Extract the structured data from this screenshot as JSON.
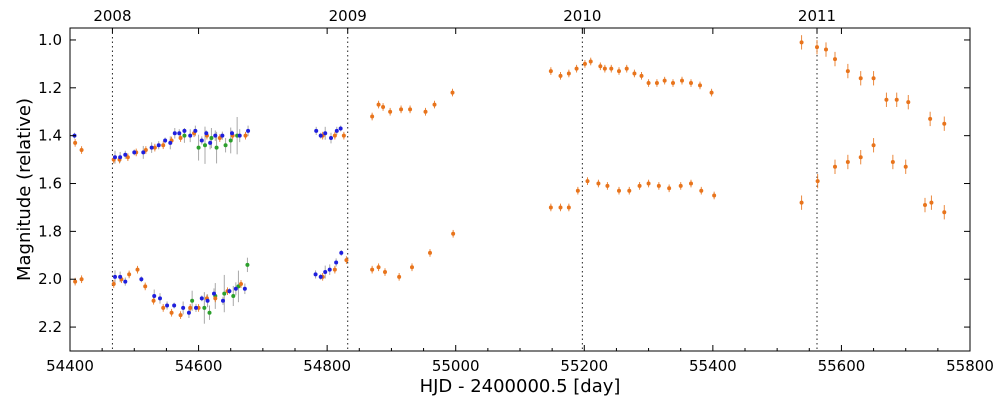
{
  "chart_data": {
    "type": "scatter",
    "title": "",
    "xlabel": "HJD - 2400000.5 [day]",
    "ylabel": "Magnitude (relative)",
    "xlim": [
      54400,
      55800
    ],
    "ylim": [
      2.3,
      0.95
    ],
    "y_axis_inverted": true,
    "grid": false,
    "x_ticks": [
      54400,
      54600,
      54800,
      55000,
      55200,
      55400,
      55600,
      55800
    ],
    "y_ticks": [
      1.0,
      1.2,
      1.4,
      1.6,
      1.8,
      2.0,
      2.2
    ],
    "x_tick_labels": [
      "54400",
      "54600",
      "54800",
      "55000",
      "55200",
      "55400",
      "55600",
      "55800"
    ],
    "y_tick_labels": [
      "1.0",
      "1.2",
      "1.4",
      "1.6",
      "1.8",
      "2.0",
      "2.2"
    ],
    "year_markers": [
      {
        "label": "2008",
        "x": 54466
      },
      {
        "label": "2009",
        "x": 54832
      },
      {
        "label": "2010",
        "x": 55197
      },
      {
        "label": "2011",
        "x": 55562
      }
    ],
    "colors": {
      "blue": "#1f1fdd",
      "green": "#2ca02c",
      "orange": "#e8741c",
      "errorbar": "#9a9a9a"
    },
    "series": [
      {
        "color": "blue",
        "points": [
          [
            54407,
            1.4
          ],
          [
            54470,
            1.49
          ],
          [
            54478,
            1.49
          ],
          [
            54486,
            1.48
          ],
          [
            54500,
            1.47
          ],
          [
            54514,
            1.47
          ],
          [
            54527,
            1.45
          ],
          [
            54538,
            1.44
          ],
          [
            54548,
            1.42
          ],
          [
            54556,
            1.43
          ],
          [
            54563,
            1.39
          ],
          [
            54570,
            1.39
          ],
          [
            54578,
            1.38
          ],
          [
            54587,
            1.4
          ],
          [
            54595,
            1.38
          ],
          [
            54605,
            1.42
          ],
          [
            54612,
            1.39
          ],
          [
            54618,
            1.43
          ],
          [
            54626,
            1.4
          ],
          [
            54637,
            1.4
          ],
          [
            54652,
            1.39
          ],
          [
            54664,
            1.4
          ],
          [
            54677,
            1.38
          ],
          [
            54783,
            1.38
          ],
          [
            54790,
            1.4
          ],
          [
            54797,
            1.39
          ],
          [
            54806,
            1.41
          ],
          [
            54815,
            1.38
          ],
          [
            54821,
            1.37
          ],
          [
            54470,
            1.99
          ],
          [
            54478,
            1.99
          ],
          [
            54486,
            2.01
          ],
          [
            54511,
            2.0
          ],
          [
            54531,
            2.07
          ],
          [
            54540,
            2.08
          ],
          [
            54551,
            2.11
          ],
          [
            54562,
            2.11
          ],
          [
            54576,
            2.12
          ],
          [
            54585,
            2.14
          ],
          [
            54596,
            2.12
          ],
          [
            54605,
            2.08
          ],
          [
            54614,
            2.09
          ],
          [
            54624,
            2.06
          ],
          [
            54638,
            2.09
          ],
          [
            54648,
            2.05
          ],
          [
            54658,
            2.04
          ],
          [
            54672,
            2.04
          ],
          [
            54782,
            1.98
          ],
          [
            54790,
            1.99
          ],
          [
            54797,
            1.97
          ],
          [
            54804,
            1.96
          ],
          [
            54814,
            1.93
          ],
          [
            54822,
            1.89
          ]
        ]
      },
      {
        "color": "green",
        "points": [
          [
            54578,
            1.4
          ],
          [
            54600,
            1.45
          ],
          [
            54610,
            1.44
          ],
          [
            54620,
            1.41
          ],
          [
            54628,
            1.45
          ],
          [
            54642,
            1.44
          ],
          [
            54650,
            1.42
          ],
          [
            54660,
            1.4
          ],
          [
            54590,
            2.09
          ],
          [
            54609,
            2.12
          ],
          [
            54617,
            2.14
          ],
          [
            54626,
            2.07
          ],
          [
            54640,
            2.06
          ],
          [
            54654,
            2.07
          ],
          [
            54662,
            2.03
          ],
          [
            54676,
            1.94
          ]
        ]
      },
      {
        "color": "orange",
        "points": [
          [
            54408,
            1.43
          ],
          [
            54418,
            1.46
          ],
          [
            54468,
            1.5
          ],
          [
            54477,
            1.5
          ],
          [
            54490,
            1.49
          ],
          [
            54503,
            1.47
          ],
          [
            54518,
            1.46
          ],
          [
            54532,
            1.45
          ],
          [
            54545,
            1.44
          ],
          [
            54558,
            1.42
          ],
          [
            54572,
            1.41
          ],
          [
            54593,
            1.39
          ],
          [
            54613,
            1.4
          ],
          [
            54633,
            1.41
          ],
          [
            54653,
            1.4
          ],
          [
            54673,
            1.4
          ],
          [
            54793,
            1.4
          ],
          [
            54812,
            1.4
          ],
          [
            54826,
            1.4
          ],
          [
            54870,
            1.32
          ],
          [
            54880,
            1.27
          ],
          [
            54887,
            1.28
          ],
          [
            54898,
            1.3
          ],
          [
            54915,
            1.29
          ],
          [
            54929,
            1.29
          ],
          [
            54953,
            1.3
          ],
          [
            54967,
            1.27
          ],
          [
            54995,
            1.22
          ],
          [
            55148,
            1.13
          ],
          [
            55163,
            1.15
          ],
          [
            55176,
            1.14
          ],
          [
            55188,
            1.12
          ],
          [
            55201,
            1.1
          ],
          [
            55210,
            1.09
          ],
          [
            55225,
            1.11
          ],
          [
            55232,
            1.12
          ],
          [
            55242,
            1.12
          ],
          [
            55254,
            1.13
          ],
          [
            55266,
            1.12
          ],
          [
            55278,
            1.14
          ],
          [
            55289,
            1.15
          ],
          [
            55300,
            1.18
          ],
          [
            55313,
            1.18
          ],
          [
            55325,
            1.17
          ],
          [
            55338,
            1.18
          ],
          [
            55352,
            1.17
          ],
          [
            55366,
            1.18
          ],
          [
            55380,
            1.19
          ],
          [
            55398,
            1.22
          ],
          [
            55538,
            1.01
          ],
          [
            55562,
            1.03
          ],
          [
            55576,
            1.04
          ],
          [
            55590,
            1.08
          ],
          [
            55610,
            1.13
          ],
          [
            55630,
            1.16
          ],
          [
            55650,
            1.16
          ],
          [
            55670,
            1.25
          ],
          [
            55686,
            1.25
          ],
          [
            55704,
            1.26
          ],
          [
            55738,
            1.33
          ],
          [
            55760,
            1.35
          ],
          [
            54408,
            2.01
          ],
          [
            54418,
            2.0
          ],
          [
            54468,
            2.02
          ],
          [
            54480,
            2.0
          ],
          [
            54492,
            1.98
          ],
          [
            54505,
            1.96
          ],
          [
            54517,
            2.03
          ],
          [
            54530,
            2.09
          ],
          [
            54545,
            2.12
          ],
          [
            54558,
            2.14
          ],
          [
            54572,
            2.15
          ],
          [
            54587,
            2.12
          ],
          [
            54600,
            2.12
          ],
          [
            54613,
            2.08
          ],
          [
            54626,
            2.08
          ],
          [
            54645,
            2.05
          ],
          [
            54666,
            2.02
          ],
          [
            54793,
            1.99
          ],
          [
            54812,
            1.96
          ],
          [
            54830,
            1.92
          ],
          [
            54870,
            1.96
          ],
          [
            54880,
            1.95
          ],
          [
            54890,
            1.97
          ],
          [
            54912,
            1.99
          ],
          [
            54932,
            1.95
          ],
          [
            54960,
            1.89
          ],
          [
            54996,
            1.81
          ],
          [
            55148,
            1.7
          ],
          [
            55163,
            1.7
          ],
          [
            55176,
            1.7
          ],
          [
            55190,
            1.63
          ],
          [
            55205,
            1.59
          ],
          [
            55222,
            1.6
          ],
          [
            55236,
            1.61
          ],
          [
            55254,
            1.63
          ],
          [
            55270,
            1.63
          ],
          [
            55286,
            1.61
          ],
          [
            55300,
            1.6
          ],
          [
            55316,
            1.61
          ],
          [
            55332,
            1.62
          ],
          [
            55350,
            1.61
          ],
          [
            55366,
            1.6
          ],
          [
            55382,
            1.63
          ],
          [
            55402,
            1.65
          ],
          [
            55538,
            1.68
          ],
          [
            55563,
            1.59
          ],
          [
            55590,
            1.53
          ],
          [
            55610,
            1.51
          ],
          [
            55630,
            1.49
          ],
          [
            55650,
            1.44
          ],
          [
            55680,
            1.51
          ],
          [
            55700,
            1.53
          ],
          [
            55730,
            1.69
          ],
          [
            55740,
            1.68
          ],
          [
            55760,
            1.72
          ]
        ]
      }
    ]
  }
}
